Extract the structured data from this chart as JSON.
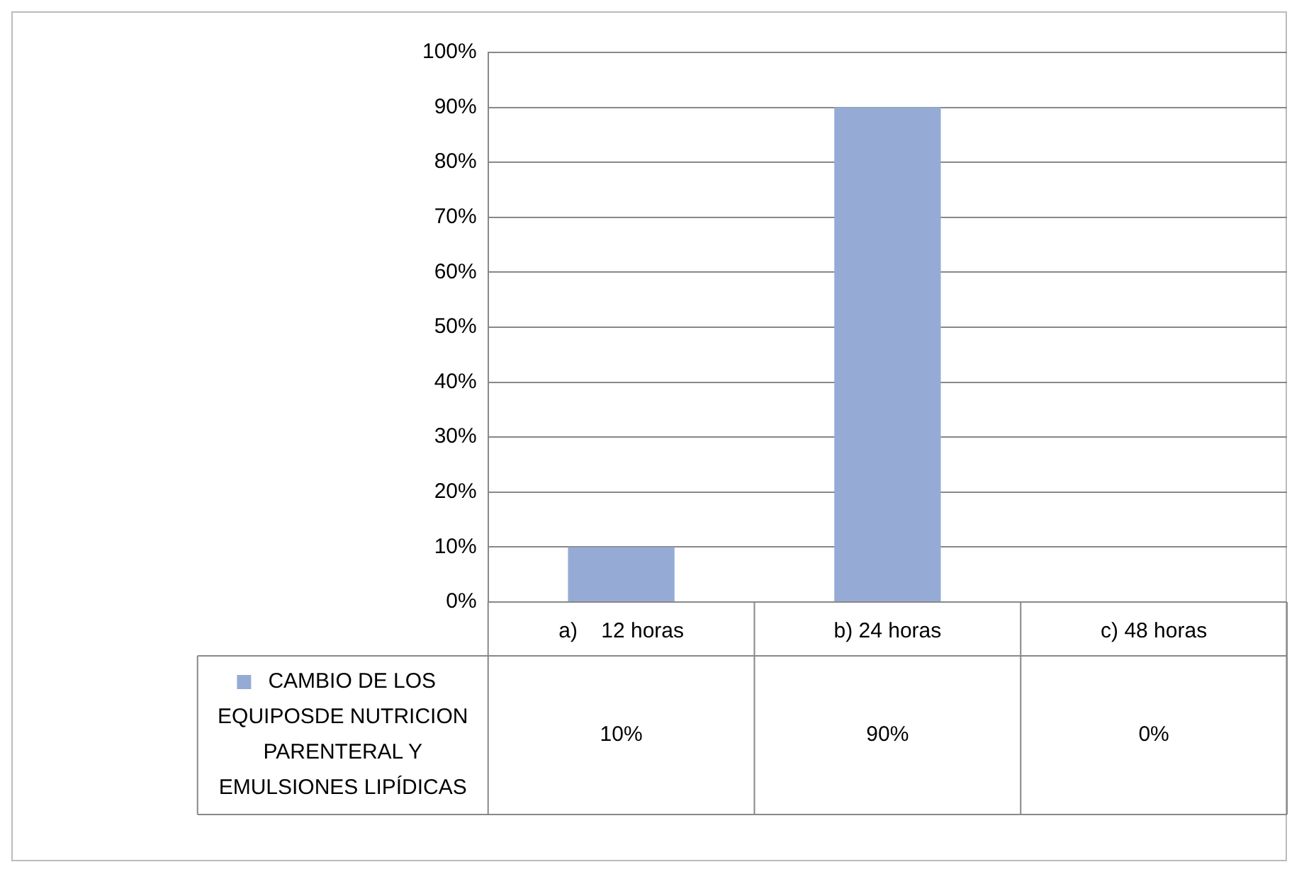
{
  "chart_data": {
    "type": "bar",
    "categories": [
      "a)    12 horas",
      "b) 24 horas",
      "c) 48 horas"
    ],
    "series": [
      {
        "name": "CAMBIO DE LOS EQUIPOSDE NUTRICION PARENTERAL Y EMULSIONES LIPÍDICAS",
        "color": "#95abd5",
        "values": [
          10,
          90,
          0
        ],
        "value_labels": [
          "10%",
          "90%",
          "0%"
        ]
      }
    ],
    "ylim": [
      0,
      100
    ],
    "yticks": [
      {
        "value": 0,
        "label": "0%"
      },
      {
        "value": 10,
        "label": "10%"
      },
      {
        "value": 20,
        "label": "20%"
      },
      {
        "value": 30,
        "label": "30%"
      },
      {
        "value": 40,
        "label": "40%"
      },
      {
        "value": 50,
        "label": "50%"
      },
      {
        "value": 60,
        "label": "60%"
      },
      {
        "value": 70,
        "label": "70%"
      },
      {
        "value": 80,
        "label": "80%"
      },
      {
        "value": 90,
        "label": "90%"
      },
      {
        "value": 100,
        "label": "100%"
      }
    ],
    "grid": "y",
    "legend": "bottom"
  }
}
